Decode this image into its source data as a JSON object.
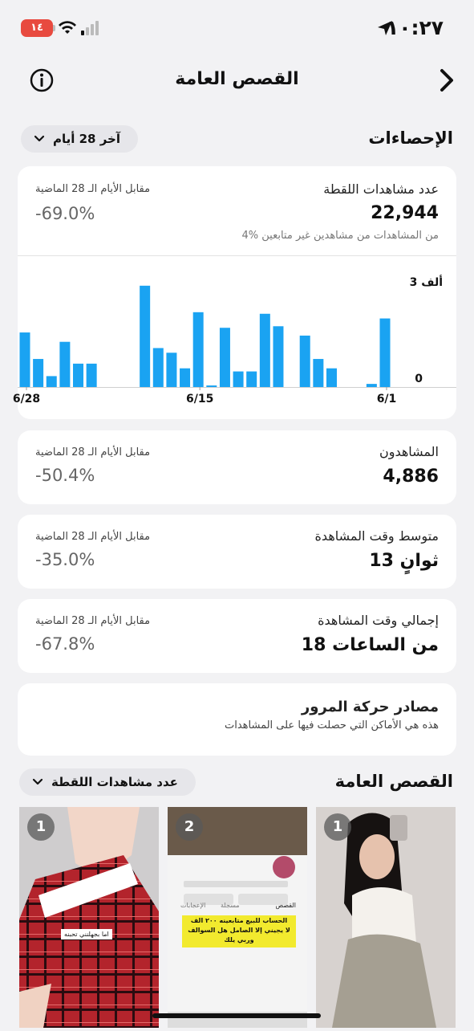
{
  "status_bar": {
    "time": "١٠:٢٧",
    "battery": "١٤"
  },
  "nav": {
    "title": "القصص العامة"
  },
  "stats_header": {
    "title": "الإحصاءات",
    "range_label": "آخر 28 أيام"
  },
  "views_card": {
    "label": "عدد مشاهدات اللقطة",
    "value": "22,944",
    "compare_label": "مقابل الأيام الـ 28 الماضية",
    "compare_value": "-69.0%",
    "note": "4% من المشاهدات من مشاهدين غير متابعين"
  },
  "chart_data": {
    "type": "bar",
    "y_tick_labels": [
      "3 ألف",
      "0"
    ],
    "x_tick_labels": [
      "6/28",
      "6/15",
      "6/1"
    ],
    "ylim": [
      0,
      3400
    ],
    "note": "Daily views, x axis runs right-to-left (6/1 at right, 6/28 at left)",
    "days": [
      "6/1",
      "6/2",
      "6/3",
      "6/4",
      "6/5",
      "6/6",
      "6/7",
      "6/8",
      "6/9",
      "6/10",
      "6/11",
      "6/12",
      "6/13",
      "6/14",
      "6/15",
      "6/16",
      "6/17",
      "6/18",
      "6/19",
      "6/20",
      "6/21",
      "6/22",
      "6/23",
      "6/24",
      "6/25",
      "6/26",
      "6/27",
      "6/28"
    ],
    "values": [
      2200,
      100,
      0,
      0,
      600,
      900,
      1650,
      0,
      1950,
      2350,
      500,
      500,
      1900,
      50,
      2400,
      600,
      1100,
      1250,
      3250,
      0,
      0,
      0,
      750,
      750,
      1450,
      350,
      900,
      1750
    ]
  },
  "viewers_card": {
    "label": "المشاهدون",
    "value": "4,886",
    "compare_label": "مقابل الأيام الـ 28 الماضية",
    "compare_value": "-50.4%"
  },
  "avg_watch_card": {
    "label": "متوسط وقت المشاهدة",
    "value": "13 ثوانٍ",
    "compare_label": "مقابل الأيام الـ 28 الماضية",
    "compare_value": "-35.0%"
  },
  "total_watch_card": {
    "label": "إجمالي وقت المشاهدة",
    "value": "18 من الساعات",
    "compare_label": "مقابل الأيام الـ 28 الماضية",
    "compare_value": "-67.8%"
  },
  "traffic_card": {
    "title": "مصادر حركة المرور",
    "description": "هذه هي الأماكن التي حصلت فيها على المشاهدات"
  },
  "stories_header": {
    "title": "القصص العامة",
    "sort_label": "عدد مشاهدات اللقطة"
  },
  "thumbnails": [
    {
      "count": "1"
    },
    {
      "count": "2",
      "tab1": "القصص",
      "tab2": "مسجلة",
      "tab3": "الإعجابات",
      "overlay_text_1": "الحساب للبيع متابعينه ٢٠٠ الف",
      "overlay_text_2": "لا يجيني إلا الصامل هل السوالف",
      "overlay_text_3": "وربي يلك"
    },
    {
      "count": "1",
      "overlay_text": "اما بجهلنني تحبنه"
    }
  ],
  "colors": {
    "bar": "#1aa3f2",
    "background": "#f2f2f4",
    "card": "#ffffff"
  }
}
